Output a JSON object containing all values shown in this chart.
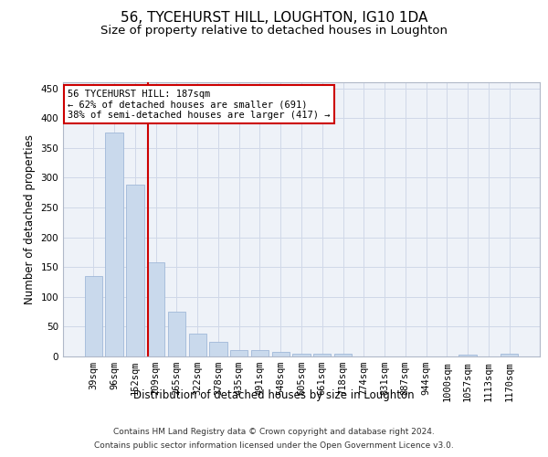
{
  "title": "56, TYCEHURST HILL, LOUGHTON, IG10 1DA",
  "subtitle": "Size of property relative to detached houses in Loughton",
  "xlabel": "Distribution of detached houses by size in Loughton",
  "ylabel": "Number of detached properties",
  "bar_labels": [
    "39sqm",
    "96sqm",
    "152sqm",
    "209sqm",
    "265sqm",
    "322sqm",
    "378sqm",
    "435sqm",
    "491sqm",
    "548sqm",
    "605sqm",
    "661sqm",
    "718sqm",
    "774sqm",
    "831sqm",
    "887sqm",
    "944sqm",
    "1000sqm",
    "1057sqm",
    "1113sqm",
    "1170sqm"
  ],
  "bar_values": [
    135,
    375,
    288,
    158,
    75,
    38,
    25,
    10,
    10,
    8,
    5,
    4,
    4,
    0,
    0,
    0,
    0,
    0,
    3,
    0,
    4
  ],
  "bar_color": "#c9d9ec",
  "bar_edge_color": "#a0b8d8",
  "grid_color": "#d0d8e8",
  "background_color": "#eef2f8",
  "red_line_x": 2.62,
  "red_line_color": "#cc0000",
  "annotation_text": "56 TYCEHURST HILL: 187sqm\n← 62% of detached houses are smaller (691)\n38% of semi-detached houses are larger (417) →",
  "annotation_box_color": "#ffffff",
  "annotation_box_edge": "#cc0000",
  "ylim": [
    0,
    460
  ],
  "yticks": [
    0,
    50,
    100,
    150,
    200,
    250,
    300,
    350,
    400,
    450
  ],
  "footer_line1": "Contains HM Land Registry data © Crown copyright and database right 2024.",
  "footer_line2": "Contains public sector information licensed under the Open Government Licence v3.0.",
  "title_fontsize": 11,
  "subtitle_fontsize": 9.5,
  "axis_label_fontsize": 8.5,
  "tick_fontsize": 7.5,
  "footer_fontsize": 6.5,
  "annot_fontsize": 7.5
}
